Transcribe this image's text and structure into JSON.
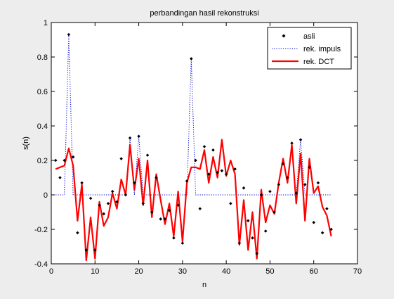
{
  "chart_data": {
    "type": "line",
    "title": "perbandingan hasil rekonstruksi",
    "xlabel": "n",
    "ylabel": "s(n)",
    "xlim": [
      0,
      70
    ],
    "ylim": [
      -0.4,
      1
    ],
    "xticks": [
      0,
      10,
      20,
      30,
      40,
      50,
      60,
      70
    ],
    "yticks": [
      -0.4,
      -0.2,
      0,
      0.2,
      0.4,
      0.6,
      0.8,
      1
    ],
    "xtick_labels": [
      "0",
      "10",
      "20",
      "30",
      "40",
      "50",
      "60",
      "70"
    ],
    "ytick_labels": [
      "-0.4",
      "-0.2",
      "0",
      "0.2",
      "0.4",
      "0.6",
      "0.8",
      "1"
    ],
    "grid": false,
    "legend_position": "top-right",
    "n": [
      1,
      2,
      3,
      4,
      5,
      6,
      7,
      8,
      9,
      10,
      11,
      12,
      13,
      14,
      15,
      16,
      17,
      18,
      19,
      20,
      21,
      22,
      23,
      24,
      25,
      26,
      27,
      28,
      29,
      30,
      31,
      32,
      33,
      34,
      35,
      36,
      37,
      38,
      39,
      40,
      41,
      42,
      43,
      44,
      45,
      46,
      47,
      48,
      49,
      50,
      51,
      52,
      53,
      54,
      55,
      56,
      57,
      58,
      59,
      60,
      61,
      62,
      63,
      64
    ],
    "series": [
      {
        "name": "asli",
        "style": "markers",
        "color": "#000000",
        "values": [
          0.2,
          0.1,
          0.2,
          0.93,
          0.22,
          -0.22,
          0.07,
          -0.32,
          -0.02,
          -0.32,
          -0.06,
          -0.11,
          -0.05,
          0.02,
          -0.04,
          0.21,
          0.0,
          0.33,
          0.07,
          0.34,
          -0.05,
          0.23,
          -0.1,
          0.1,
          -0.14,
          -0.14,
          -0.09,
          -0.25,
          -0.06,
          -0.28,
          0.08,
          0.79,
          0.2,
          -0.08,
          0.28,
          0.12,
          0.26,
          0.13,
          0.14,
          0.12,
          -0.05,
          0.15,
          -0.28,
          0.04,
          -0.15,
          -0.25,
          -0.34,
          0.0,
          -0.21,
          0.02,
          -0.1,
          0.06,
          0.18,
          0.1,
          0.3,
          0.01,
          0.32,
          0.06,
          0.16,
          -0.16,
          0.07,
          -0.22,
          -0.08,
          -0.2
        ]
      },
      {
        "name": "rek. impuls",
        "style": "dotted",
        "color": "#0000cc",
        "values": [
          0,
          0,
          0,
          0.93,
          0,
          0,
          0,
          0,
          0,
          0,
          0,
          0,
          0,
          0,
          0,
          0,
          0,
          0.33,
          0,
          0.34,
          0,
          0,
          0,
          0,
          0,
          0,
          0,
          0,
          0,
          0,
          0,
          0.79,
          0,
          0,
          0,
          0,
          0,
          0,
          0,
          0,
          0,
          0,
          0,
          0,
          0,
          0,
          0,
          0,
          0,
          0,
          0,
          0,
          0,
          0,
          0,
          0,
          0.32,
          0,
          0,
          0,
          0,
          0,
          0,
          0
        ]
      },
      {
        "name": "rek. DCT",
        "style": "solid",
        "color": "#ff0000",
        "values": [
          0.15,
          0.16,
          0.17,
          0.27,
          0.17,
          -0.15,
          0.06,
          -0.38,
          -0.13,
          -0.37,
          -0.04,
          -0.18,
          -0.13,
          0.01,
          -0.08,
          0.09,
          0.0,
          0.29,
          0.03,
          0.21,
          -0.06,
          0.2,
          -0.13,
          0.12,
          -0.03,
          -0.17,
          -0.05,
          -0.24,
          0.02,
          -0.27,
          0.07,
          0.16,
          0.16,
          0.15,
          0.26,
          0.07,
          0.22,
          0.1,
          0.32,
          0.11,
          0.2,
          0.12,
          -0.29,
          -0.03,
          -0.32,
          -0.1,
          -0.37,
          0.03,
          -0.16,
          -0.06,
          -0.11,
          0.07,
          0.21,
          0.07,
          0.29,
          -0.05,
          0.24,
          -0.15,
          0.21,
          0.01,
          0.05,
          -0.07,
          -0.12,
          -0.24
        ]
      }
    ]
  },
  "colors": {
    "figure_background": "#ededed",
    "axes_background": "#ffffff",
    "axis_color": "#000000"
  }
}
